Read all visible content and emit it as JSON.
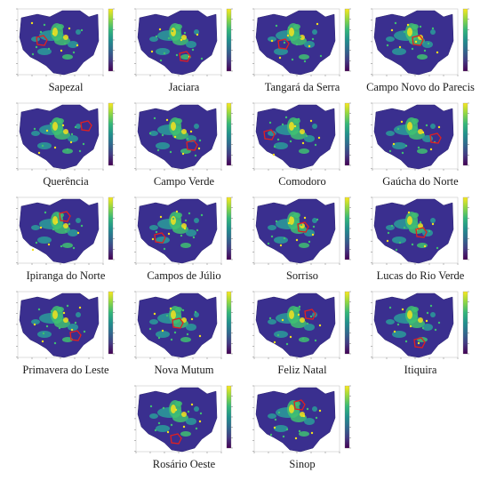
{
  "colors": {
    "map_fill": "#3a2f8f",
    "high_yellow": "#f4e21d",
    "mid_green": "#3fbf72",
    "low_teal": "#2a9c9a",
    "outline_red": "#e02020",
    "axis_gray": "#555555"
  },
  "colorbar_stops": [
    "#f9e721",
    "#8fd744",
    "#35b779",
    "#21908d",
    "#31688e",
    "#443a83",
    "#440154"
  ],
  "panels": [
    {
      "caption": "Sapezal"
    },
    {
      "caption": "Jaciara"
    },
    {
      "caption": "Tangará da Serra"
    },
    {
      "caption": "Campo Novo do Parecis"
    },
    {
      "caption": "Querência"
    },
    {
      "caption": "Campo Verde"
    },
    {
      "caption": "Comodoro"
    },
    {
      "caption": "Gaúcha do Norte"
    },
    {
      "caption": "Ipiranga do Norte"
    },
    {
      "caption": "Campos de Júlio"
    },
    {
      "caption": "Sorriso"
    },
    {
      "caption": "Lucas do Rio Verde"
    },
    {
      "caption": "Primavera do Leste"
    },
    {
      "caption": "Nova Mutum"
    },
    {
      "caption": "Feliz Natal"
    },
    {
      "caption": "Itiquira"
    },
    {
      "caption": "Rosário Oeste"
    },
    {
      "caption": "Sinop"
    }
  ]
}
